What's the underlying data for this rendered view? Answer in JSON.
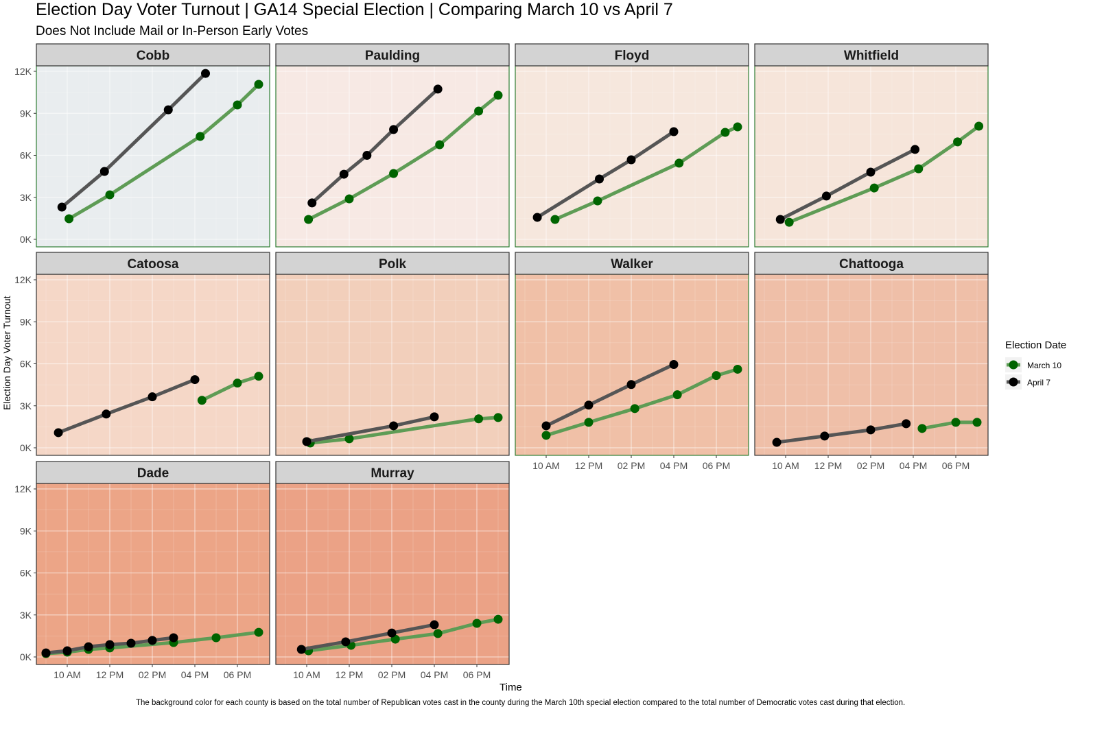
{
  "title": "Election Day Voter Turnout  |  GA14 Special Election  |  Comparing March 10 vs April 7",
  "subtitle": "Does Not Include Mail or In-Person Early Votes",
  "caption": "The background color for each county is based on the total number of Republican votes cast in the county during the March 10th special election compared to the total number of Democratic votes cast during that election.",
  "legend": {
    "title": "Election Date",
    "items": [
      {
        "label": "March 10",
        "color": "#006400"
      },
      {
        "label": "April 7",
        "color": "#000000"
      }
    ]
  },
  "chart_data": {
    "type": "line",
    "facet_by": "county",
    "xlabel": "Time",
    "ylabel": "Election Day Voter Turnout",
    "x_ticks": [
      "10 AM",
      "12 PM",
      "02 PM",
      "04 PM",
      "06 PM"
    ],
    "y_ticks": [
      "0K",
      "3K",
      "6K",
      "9K",
      "12K"
    ],
    "ylim": [
      0,
      12000
    ],
    "xlim": [
      "08:30",
      "19:30"
    ],
    "grid": true,
    "legend_position": "right",
    "series_styles": {
      "March 10": {
        "point": "#006400",
        "line": "#5e9c55"
      },
      "April 7": {
        "point": "#000000",
        "line": "#555555"
      }
    },
    "panels": [
      {
        "county": "Cobb",
        "background": "#e9edef",
        "border": "#2e7d32",
        "March 10": [
          [
            "10:05",
            1470
          ],
          [
            "12:00",
            3180
          ],
          [
            "16:15",
            7350
          ],
          [
            "18:00",
            9600
          ],
          [
            "19:00",
            11070
          ]
        ],
        "April 7": [
          [
            "09:45",
            2300
          ],
          [
            "11:45",
            4850
          ],
          [
            "14:45",
            9250
          ],
          [
            "16:30",
            11850
          ]
        ]
      },
      {
        "county": "Paulding",
        "background": "#f7e9e4",
        "border": "#2e7d32",
        "March 10": [
          [
            "10:05",
            1420
          ],
          [
            "12:00",
            2890
          ],
          [
            "14:05",
            4700
          ],
          [
            "16:15",
            6760
          ],
          [
            "18:05",
            9160
          ],
          [
            "19:00",
            10290
          ]
        ],
        "April 7": [
          [
            "10:15",
            2600
          ],
          [
            "11:45",
            4650
          ],
          [
            "12:50",
            6000
          ],
          [
            "14:05",
            7840
          ],
          [
            "16:10",
            10730
          ]
        ]
      },
      {
        "county": "Floyd",
        "background": "#f6e7dd",
        "border": "#2e7d32",
        "March 10": [
          [
            "10:25",
            1420
          ],
          [
            "12:25",
            2740
          ],
          [
            "16:15",
            5440
          ],
          [
            "18:25",
            7640
          ],
          [
            "19:00",
            8030
          ]
        ],
        "April 7": [
          [
            "09:35",
            1570
          ],
          [
            "12:30",
            4310
          ],
          [
            "14:00",
            5680
          ],
          [
            "16:00",
            7690
          ]
        ]
      },
      {
        "county": "Whitfield",
        "background": "#f6e5da",
        "border": "#2e7d32",
        "March 10": [
          [
            "10:10",
            1220
          ],
          [
            "14:10",
            3670
          ],
          [
            "16:15",
            5040
          ],
          [
            "18:05",
            6960
          ],
          [
            "19:05",
            8080
          ]
        ],
        "April 7": [
          [
            "09:45",
            1420
          ],
          [
            "11:55",
            3090
          ],
          [
            "14:00",
            4800
          ],
          [
            "16:05",
            6420
          ]
        ]
      },
      {
        "county": "Catoosa",
        "background": "#f5d7c7",
        "border": "#333333",
        "March 10": [
          [
            "16:20",
            3390
          ],
          [
            "18:00",
            4620
          ],
          [
            "19:00",
            5110
          ]
        ],
        "April 7": [
          [
            "09:35",
            1080
          ],
          [
            "11:50",
            2410
          ],
          [
            "14:00",
            3640
          ],
          [
            "16:00",
            4870
          ]
        ]
      },
      {
        "county": "Polk",
        "background": "#f2cfbb",
        "border": "#333333",
        "March 10": [
          [
            "10:10",
            340
          ],
          [
            "12:00",
            640
          ],
          [
            "18:05",
            2070
          ],
          [
            "19:00",
            2160
          ]
        ],
        "April 7": [
          [
            "10:00",
            440
          ],
          [
            "14:05",
            1570
          ],
          [
            "16:00",
            2210
          ]
        ]
      },
      {
        "county": "Walker",
        "background": "#f0c0a7",
        "border": "#2e7d32",
        "March 10": [
          [
            "10:00",
            890
          ],
          [
            "12:00",
            1820
          ],
          [
            "14:10",
            2800
          ],
          [
            "16:10",
            3790
          ],
          [
            "18:00",
            5160
          ],
          [
            "19:00",
            5610
          ]
        ],
        "April 7": [
          [
            "10:00",
            1570
          ],
          [
            "12:00",
            3050
          ],
          [
            "14:00",
            4520
          ],
          [
            "16:00",
            5950
          ]
        ]
      },
      {
        "county": "Chattooga",
        "background": "#efbfa8",
        "border": "#333333",
        "March 10": [
          [
            "16:25",
            1380
          ],
          [
            "18:00",
            1820
          ],
          [
            "19:00",
            1820
          ]
        ],
        "April 7": [
          [
            "09:35",
            390
          ],
          [
            "11:50",
            840
          ],
          [
            "14:00",
            1280
          ],
          [
            "15:40",
            1720
          ]
        ]
      },
      {
        "county": "Dade",
        "background": "#eca587",
        "border": "#333333",
        "March 10": [
          [
            "09:00",
            240
          ],
          [
            "10:00",
            340
          ],
          [
            "11:00",
            540
          ],
          [
            "12:00",
            640
          ],
          [
            "15:00",
            1030
          ],
          [
            "17:00",
            1370
          ],
          [
            "19:00",
            1760
          ]
        ],
        "April 7": [
          [
            "09:00",
            290
          ],
          [
            "10:00",
            440
          ],
          [
            "11:00",
            730
          ],
          [
            "12:00",
            880
          ],
          [
            "13:00",
            980
          ],
          [
            "14:00",
            1180
          ],
          [
            "15:00",
            1370
          ]
        ]
      },
      {
        "county": "Murray",
        "background": "#eba286",
        "border": "#333333",
        "March 10": [
          [
            "10:05",
            440
          ],
          [
            "12:05",
            830
          ],
          [
            "14:10",
            1270
          ],
          [
            "16:10",
            1670
          ],
          [
            "18:00",
            2400
          ],
          [
            "19:00",
            2690
          ]
        ],
        "April 7": [
          [
            "09:45",
            540
          ],
          [
            "11:50",
            1080
          ],
          [
            "14:00",
            1710
          ],
          [
            "16:00",
            2300
          ]
        ]
      }
    ]
  }
}
